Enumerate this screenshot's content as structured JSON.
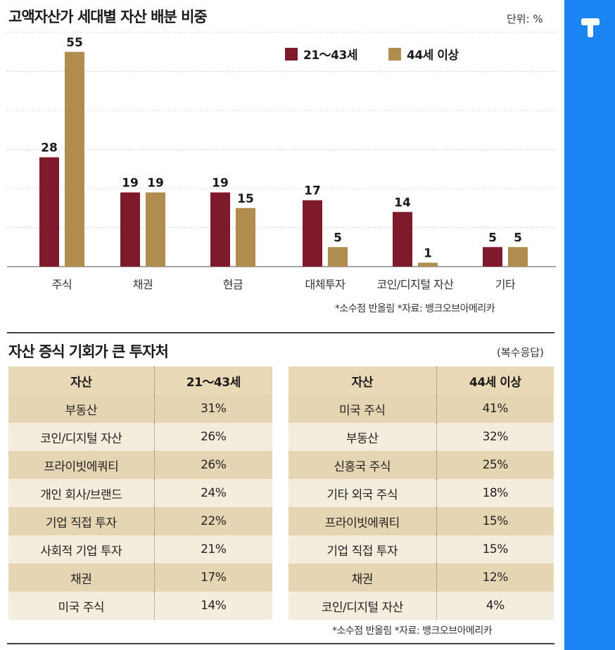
{
  "chart_title": "고액자산가 세대별 자산 배분 비중",
  "unit_label": "단위: %",
  "chart_note": "*소수점 반올림 *자료: 뱅크오브아메리카",
  "colors": {
    "young": "#7f1a2c",
    "old": "#b08c4e",
    "side": "#1a84f2"
  },
  "chart_data": {
    "type": "bar",
    "title": "고액자산가 세대별 자산 배분 비중",
    "xlabel": "",
    "ylabel": "",
    "ylim": [
      0,
      60
    ],
    "grid": true,
    "legend": "top-right",
    "categories": [
      "주식",
      "채권",
      "현금",
      "대체투자",
      "코인/디지털 자산",
      "기타"
    ],
    "series": [
      {
        "name": "21～43세",
        "values": [
          28,
          19,
          19,
          17,
          14,
          5
        ]
      },
      {
        "name": "44세 이상",
        "values": [
          55,
          19,
          15,
          5,
          1,
          5
        ]
      }
    ]
  },
  "table_title": "자산 증식 기회가 큰 투자처",
  "table_subtitle": "(복수응답)",
  "table_note": "*소수점 반올림 *자료: 뱅크오브아메리카",
  "left_table": {
    "headers": [
      "자산",
      "21～43세"
    ],
    "rows": [
      [
        "부동산",
        "31%"
      ],
      [
        "코인/디지털 자산",
        "26%"
      ],
      [
        "프라이빗에쿼티",
        "26%"
      ],
      [
        "개인 회사/브랜드",
        "24%"
      ],
      [
        "기업 직접 투자",
        "22%"
      ],
      [
        "사회적 기업 투자",
        "21%"
      ],
      [
        "채권",
        "17%"
      ],
      [
        "미국 주식",
        "14%"
      ]
    ]
  },
  "right_table": {
    "headers": [
      "자산",
      "44세 이상"
    ],
    "rows": [
      [
        "미국 주식",
        "41%"
      ],
      [
        "부동산",
        "32%"
      ],
      [
        "신흥국 주식",
        "25%"
      ],
      [
        "기타 외국 주식",
        "18%"
      ],
      [
        "프라이빗에쿼티",
        "15%"
      ],
      [
        "기업 직접 투자",
        "15%"
      ],
      [
        "채권",
        "12%"
      ],
      [
        "코인/디지털 자산",
        "4%"
      ]
    ]
  }
}
